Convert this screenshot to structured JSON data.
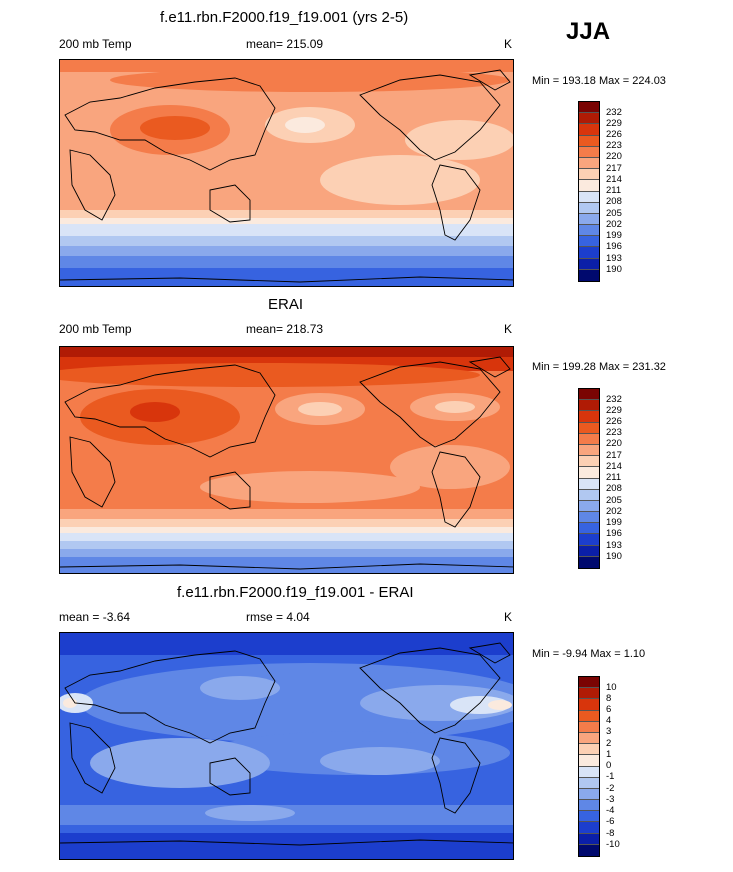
{
  "season": "JJA",
  "panels": [
    {
      "id": "model",
      "title": "f.e11.rbn.F2000.f19_f19.001 (yrs 2-5)",
      "left_label": "200 mb Temp",
      "center_label": "mean= 215.09",
      "right_label": "K",
      "minmax": "Min = 193.18 Max = 224.03",
      "levels": [
        "232",
        "229",
        "226",
        "223",
        "220",
        "217",
        "214",
        "211",
        "208",
        "205",
        "202",
        "199",
        "196",
        "193",
        "190"
      ],
      "colors": [
        "#7a0403",
        "#b01b05",
        "#d8350c",
        "#ea5a20",
        "#f47c4a",
        "#f9a57e",
        "#fcd0b4",
        "#fbeade",
        "#d9e4f7",
        "#b1c8f1",
        "#8aa9ec",
        "#5f87e6",
        "#3763e0",
        "#1c3ecd",
        "#0b1fa8",
        "#00096e"
      ]
    },
    {
      "id": "obs",
      "title": "ERAI",
      "left_label": "200 mb Temp",
      "center_label": "mean= 218.73",
      "right_label": "K",
      "minmax": "Min = 199.28 Max = 231.32",
      "levels": [
        "232",
        "229",
        "226",
        "223",
        "220",
        "217",
        "214",
        "211",
        "208",
        "205",
        "202",
        "199",
        "196",
        "193",
        "190"
      ],
      "colors": [
        "#7a0403",
        "#b01b05",
        "#d8350c",
        "#ea5a20",
        "#f47c4a",
        "#f9a57e",
        "#fcd0b4",
        "#fbeade",
        "#d9e4f7",
        "#b1c8f1",
        "#8aa9ec",
        "#5f87e6",
        "#3763e0",
        "#1c3ecd",
        "#0b1fa8",
        "#00096e"
      ]
    },
    {
      "id": "diff",
      "title": "f.e11.rbn.F2000.f19_f19.001 - ERAI",
      "left_label": "mean =  -3.64",
      "center_label": "rmse =   4.04",
      "right_label": "K",
      "minmax": "Min =  -9.94 Max =   1.10",
      "levels": [
        "10",
        "8",
        "6",
        "4",
        "3",
        "2",
        "1",
        "0",
        "-1",
        "-2",
        "-3",
        "-4",
        "-6",
        "-8",
        "-10"
      ],
      "colors": [
        "#7a0403",
        "#b01b05",
        "#d8350c",
        "#ea5a20",
        "#f47c4a",
        "#f9a57e",
        "#fcd0b4",
        "#fbeade",
        "#d9e4f7",
        "#b1c8f1",
        "#8aa9ec",
        "#5f87e6",
        "#3763e0",
        "#1c3ecd",
        "#0b1fa8",
        "#00096e"
      ]
    }
  ]
}
